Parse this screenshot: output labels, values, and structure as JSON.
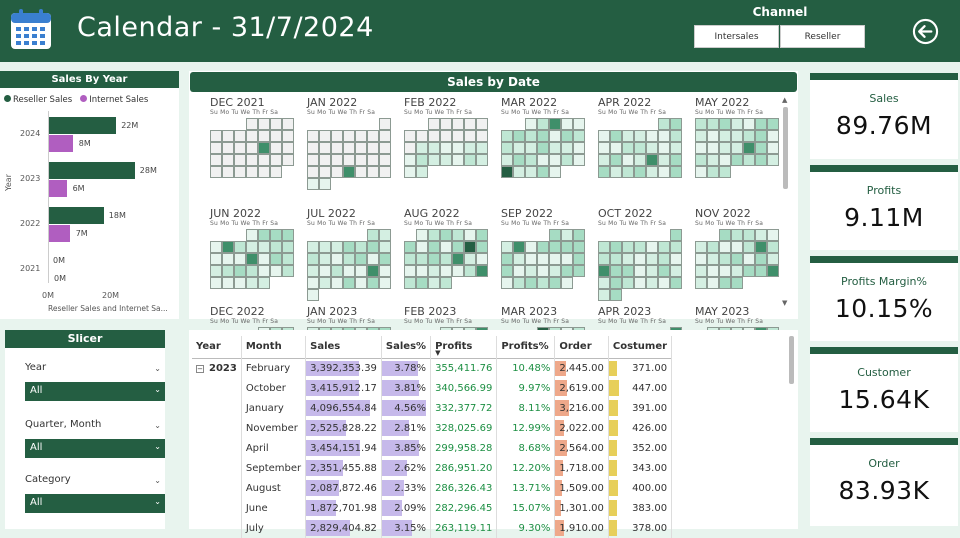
{
  "header": {
    "title": "Calendar - 31/7/2024",
    "channel_label": "Channel",
    "channels": [
      "Intersales",
      "Reseller"
    ]
  },
  "sales_by_year": {
    "title": "Sales By Year",
    "legend": [
      "Reseller Sales",
      "Internet Sales"
    ],
    "y_axis_label": "Year",
    "x_axis_label": "Reseller Sales and Internet Sa...",
    "x_ticks": [
      "0M",
      "20M"
    ],
    "colors": {
      "reseller": "#245e42",
      "internet": "#b05ec0"
    },
    "rows": [
      {
        "year": "2024",
        "reseller": 22,
        "reseller_label": "22M",
        "internet": 8,
        "internet_label": "8M"
      },
      {
        "year": "2023",
        "reseller": 28,
        "reseller_label": "28M",
        "internet": 6,
        "internet_label": "6M"
      },
      {
        "year": "2022",
        "reseller": 18,
        "reseller_label": "18M",
        "internet": 7,
        "internet_label": "7M"
      },
      {
        "year": "2021",
        "reseller": 0,
        "reseller_label": "0M",
        "internet": 0,
        "internet_label": "0M"
      }
    ]
  },
  "slicer": {
    "title": "Slicer",
    "filters": [
      {
        "label": "Year",
        "value": "All"
      },
      {
        "label": "Quarter, Month",
        "value": "All"
      },
      {
        "label": "Category",
        "value": "All"
      }
    ]
  },
  "sales_by_date": {
    "title": "Sales by Date",
    "dow": "Su Mo Tu We Th Fr Sa",
    "months": [
      "DEC 2021",
      "JAN 2022",
      "FEB 2022",
      "MAR 2022",
      "APR 2022",
      "MAY 2022",
      "JUN 2022",
      "JUL 2022",
      "AUG 2022",
      "SEP 2022",
      "OCT 2022",
      "NOV 2022",
      "DEC 2022",
      "JAN 2023",
      "FEB 2023",
      "MAR 2023",
      "APR 2023",
      "MAY 2023"
    ]
  },
  "table": {
    "headers": [
      "Year",
      "Month",
      "Sales",
      "Sales%",
      "Profits",
      "Profits%",
      "Order",
      "Costumer"
    ],
    "year": "2023",
    "rows": [
      {
        "month": "February",
        "sales": "3,392,353.39",
        "sales_pct": "3.78%",
        "profits": "355,411.76",
        "profits_pct": "10.48%",
        "order": "2,445.00",
        "customer": "371.00",
        "s": 0.83,
        "sp": 0.83,
        "o": 0.76,
        "c": 0.83
      },
      {
        "month": "October",
        "sales": "3,415,912.17",
        "sales_pct": "3.81%",
        "profits": "340,566.99",
        "profits_pct": "9.97%",
        "order": "2,619.00",
        "customer": "447.00",
        "s": 0.83,
        "sp": 0.84,
        "o": 0.81,
        "c": 1.0
      },
      {
        "month": "January",
        "sales": "4,096,554.84",
        "sales_pct": "4.56%",
        "profits": "332,377.72",
        "profits_pct": "8.11%",
        "order": "3,216.00",
        "customer": "391.00",
        "s": 1.0,
        "sp": 1.0,
        "o": 1.0,
        "c": 0.87
      },
      {
        "month": "November",
        "sales": "2,525,828.22",
        "sales_pct": "2.81%",
        "profits": "328,025.69",
        "profits_pct": "12.99%",
        "order": "2,022.00",
        "customer": "426.00",
        "s": 0.62,
        "sp": 0.62,
        "o": 0.63,
        "c": 0.95
      },
      {
        "month": "April",
        "sales": "3,454,151.94",
        "sales_pct": "3.85%",
        "profits": "299,958.28",
        "profits_pct": "8.68%",
        "order": "2,564.00",
        "customer": "352.00",
        "s": 0.84,
        "sp": 0.84,
        "o": 0.8,
        "c": 0.79
      },
      {
        "month": "September",
        "sales": "2,351,455.88",
        "sales_pct": "2.62%",
        "profits": "286,951.20",
        "profits_pct": "12.20%",
        "order": "1,718.00",
        "customer": "343.00",
        "s": 0.57,
        "sp": 0.57,
        "o": 0.53,
        "c": 0.77
      },
      {
        "month": "August",
        "sales": "2,087,872.46",
        "sales_pct": "2.33%",
        "profits": "286,326.43",
        "profits_pct": "13.71%",
        "order": "1,509.00",
        "customer": "400.00",
        "s": 0.51,
        "sp": 0.51,
        "o": 0.47,
        "c": 0.89
      },
      {
        "month": "June",
        "sales": "1,872,701.98",
        "sales_pct": "2.09%",
        "profits": "282,296.45",
        "profits_pct": "15.07%",
        "order": "1,301.00",
        "customer": "383.00",
        "s": 0.46,
        "sp": 0.46,
        "o": 0.4,
        "c": 0.86
      },
      {
        "month": "July",
        "sales": "2,829,404.82",
        "sales_pct": "3.15%",
        "profits": "263,119.11",
        "profits_pct": "9.30%",
        "order": "1,910.00",
        "customer": "378.00",
        "s": 0.69,
        "sp": 0.69,
        "o": 0.59,
        "c": 0.85
      }
    ]
  },
  "kpis": [
    {
      "label": "Sales",
      "value": "89.76M"
    },
    {
      "label": "Profits",
      "value": "9.11M"
    },
    {
      "label": "Profits Margin%",
      "value": "10.15%"
    },
    {
      "label": "Customer",
      "value": "15.64K"
    },
    {
      "label": "Order",
      "value": "83.93K"
    }
  ]
}
